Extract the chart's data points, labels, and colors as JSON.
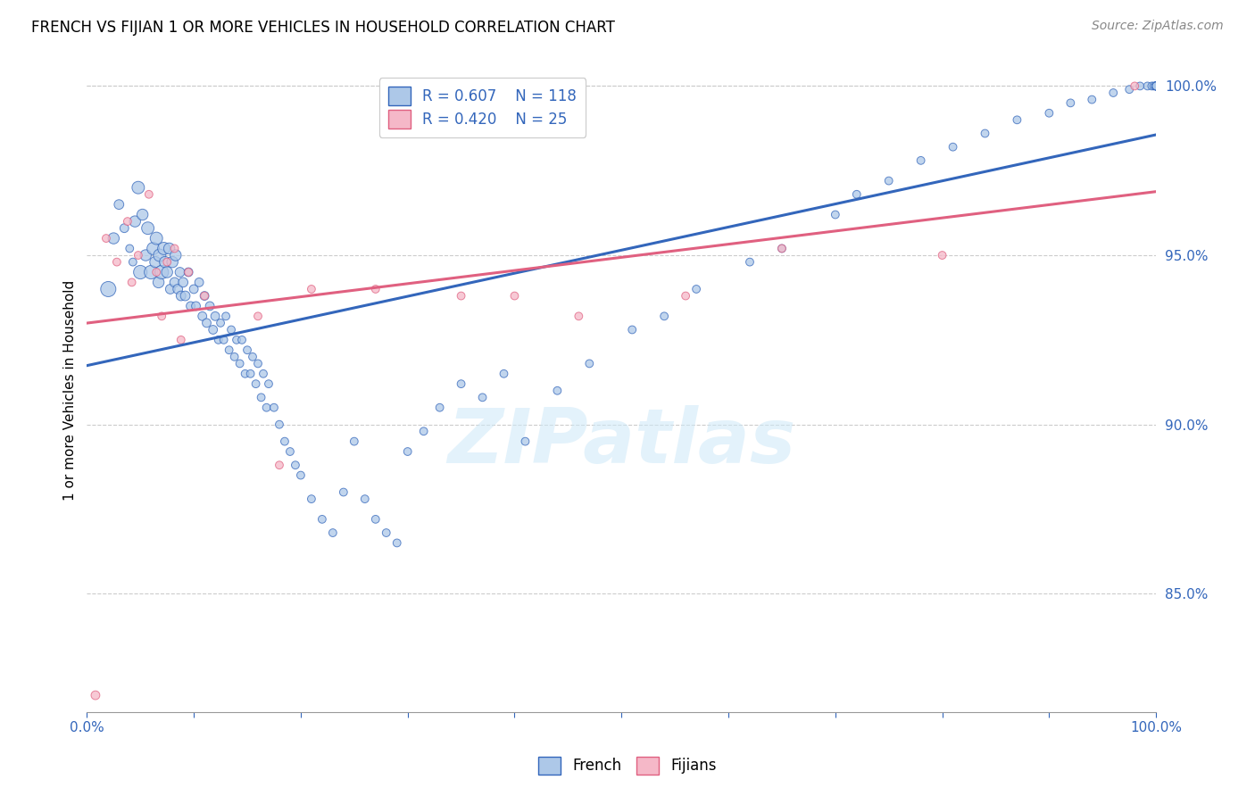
{
  "title": "FRENCH VS FIJIAN 1 OR MORE VEHICLES IN HOUSEHOLD CORRELATION CHART",
  "source": "Source: ZipAtlas.com",
  "ylabel": "1 or more Vehicles in Household",
  "xlim": [
    0.0,
    1.0
  ],
  "ylim": [
    0.815,
    1.005
  ],
  "yticks": [
    0.85,
    0.9,
    0.95,
    1.0
  ],
  "ytick_labels": [
    "85.0%",
    "90.0%",
    "95.0%",
    "100.0%"
  ],
  "french_color": "#adc8e8",
  "fijian_color": "#f5b8c8",
  "french_line_color": "#3366bb",
  "fijian_line_color": "#e06080",
  "legend_text_color": "#3366bb",
  "R_french": 0.607,
  "N_french": 118,
  "R_fijian": 0.42,
  "N_fijian": 25,
  "french_x": [
    0.02,
    0.025,
    0.03,
    0.035,
    0.04,
    0.043,
    0.045,
    0.048,
    0.05,
    0.052,
    0.055,
    0.057,
    0.06,
    0.062,
    0.064,
    0.065,
    0.067,
    0.068,
    0.07,
    0.072,
    0.073,
    0.075,
    0.077,
    0.078,
    0.08,
    0.082,
    0.083,
    0.085,
    0.087,
    0.088,
    0.09,
    0.092,
    0.095,
    0.097,
    0.1,
    0.102,
    0.105,
    0.108,
    0.11,
    0.112,
    0.115,
    0.118,
    0.12,
    0.123,
    0.125,
    0.128,
    0.13,
    0.133,
    0.135,
    0.138,
    0.14,
    0.143,
    0.145,
    0.148,
    0.15,
    0.153,
    0.155,
    0.158,
    0.16,
    0.163,
    0.165,
    0.168,
    0.17,
    0.175,
    0.18,
    0.185,
    0.19,
    0.195,
    0.2,
    0.21,
    0.22,
    0.23,
    0.24,
    0.25,
    0.26,
    0.27,
    0.28,
    0.29,
    0.3,
    0.315,
    0.33,
    0.35,
    0.37,
    0.39,
    0.41,
    0.44,
    0.47,
    0.51,
    0.54,
    0.57,
    0.62,
    0.65,
    0.7,
    0.72,
    0.75,
    0.78,
    0.81,
    0.84,
    0.87,
    0.9,
    0.92,
    0.94,
    0.96,
    0.975,
    0.985,
    0.992,
    0.996,
    0.998,
    1.0,
    1.0,
    1.0,
    1.0,
    1.0,
    1.0,
    1.0,
    1.0,
    1.0,
    1.0
  ],
  "french_y": [
    0.94,
    0.955,
    0.965,
    0.958,
    0.952,
    0.948,
    0.96,
    0.97,
    0.945,
    0.962,
    0.95,
    0.958,
    0.945,
    0.952,
    0.948,
    0.955,
    0.942,
    0.95,
    0.945,
    0.952,
    0.948,
    0.945,
    0.952,
    0.94,
    0.948,
    0.942,
    0.95,
    0.94,
    0.945,
    0.938,
    0.942,
    0.938,
    0.945,
    0.935,
    0.94,
    0.935,
    0.942,
    0.932,
    0.938,
    0.93,
    0.935,
    0.928,
    0.932,
    0.925,
    0.93,
    0.925,
    0.932,
    0.922,
    0.928,
    0.92,
    0.925,
    0.918,
    0.925,
    0.915,
    0.922,
    0.915,
    0.92,
    0.912,
    0.918,
    0.908,
    0.915,
    0.905,
    0.912,
    0.905,
    0.9,
    0.895,
    0.892,
    0.888,
    0.885,
    0.878,
    0.872,
    0.868,
    0.88,
    0.895,
    0.878,
    0.872,
    0.868,
    0.865,
    0.892,
    0.898,
    0.905,
    0.912,
    0.908,
    0.915,
    0.895,
    0.91,
    0.918,
    0.928,
    0.932,
    0.94,
    0.948,
    0.952,
    0.962,
    0.968,
    0.972,
    0.978,
    0.982,
    0.986,
    0.99,
    0.992,
    0.995,
    0.996,
    0.998,
    0.999,
    1.0,
    1.0,
    1.0,
    1.0,
    1.0,
    1.0,
    1.0,
    1.0,
    1.0,
    1.0,
    1.0,
    1.0,
    1.0,
    1.0
  ],
  "french_sizes": [
    150,
    80,
    60,
    50,
    40,
    40,
    80,
    100,
    120,
    80,
    80,
    100,
    120,
    100,
    80,
    100,
    80,
    100,
    120,
    100,
    80,
    80,
    80,
    60,
    80,
    60,
    80,
    60,
    60,
    60,
    60,
    60,
    50,
    50,
    50,
    50,
    50,
    50,
    50,
    50,
    50,
    50,
    50,
    40,
    40,
    40,
    40,
    40,
    40,
    40,
    40,
    40,
    40,
    40,
    40,
    40,
    40,
    40,
    40,
    40,
    40,
    40,
    40,
    40,
    40,
    40,
    40,
    40,
    40,
    40,
    40,
    40,
    40,
    40,
    40,
    40,
    40,
    40,
    40,
    40,
    40,
    40,
    40,
    40,
    40,
    40,
    40,
    40,
    40,
    40,
    40,
    40,
    40,
    40,
    40,
    40,
    40,
    40,
    40,
    40,
    40,
    40,
    40,
    40,
    40,
    40,
    40,
    40,
    40,
    40,
    40,
    40,
    40,
    40,
    40,
    40,
    40,
    40
  ],
  "fijian_x": [
    0.008,
    0.018,
    0.028,
    0.038,
    0.042,
    0.048,
    0.058,
    0.065,
    0.07,
    0.075,
    0.082,
    0.088,
    0.095,
    0.11,
    0.16,
    0.21,
    0.27,
    0.35,
    0.46,
    0.56,
    0.65,
    0.8,
    0.98,
    0.4,
    0.18
  ],
  "fijian_y": [
    0.82,
    0.955,
    0.948,
    0.96,
    0.942,
    0.95,
    0.968,
    0.945,
    0.932,
    0.948,
    0.952,
    0.925,
    0.945,
    0.938,
    0.932,
    0.94,
    0.94,
    0.938,
    0.932,
    0.938,
    0.952,
    0.95,
    1.0,
    0.938,
    0.888
  ],
  "fijian_sizes": [
    50,
    40,
    40,
    40,
    40,
    40,
    40,
    40,
    40,
    40,
    40,
    40,
    40,
    40,
    40,
    40,
    40,
    40,
    40,
    40,
    40,
    40,
    40,
    40,
    40
  ]
}
